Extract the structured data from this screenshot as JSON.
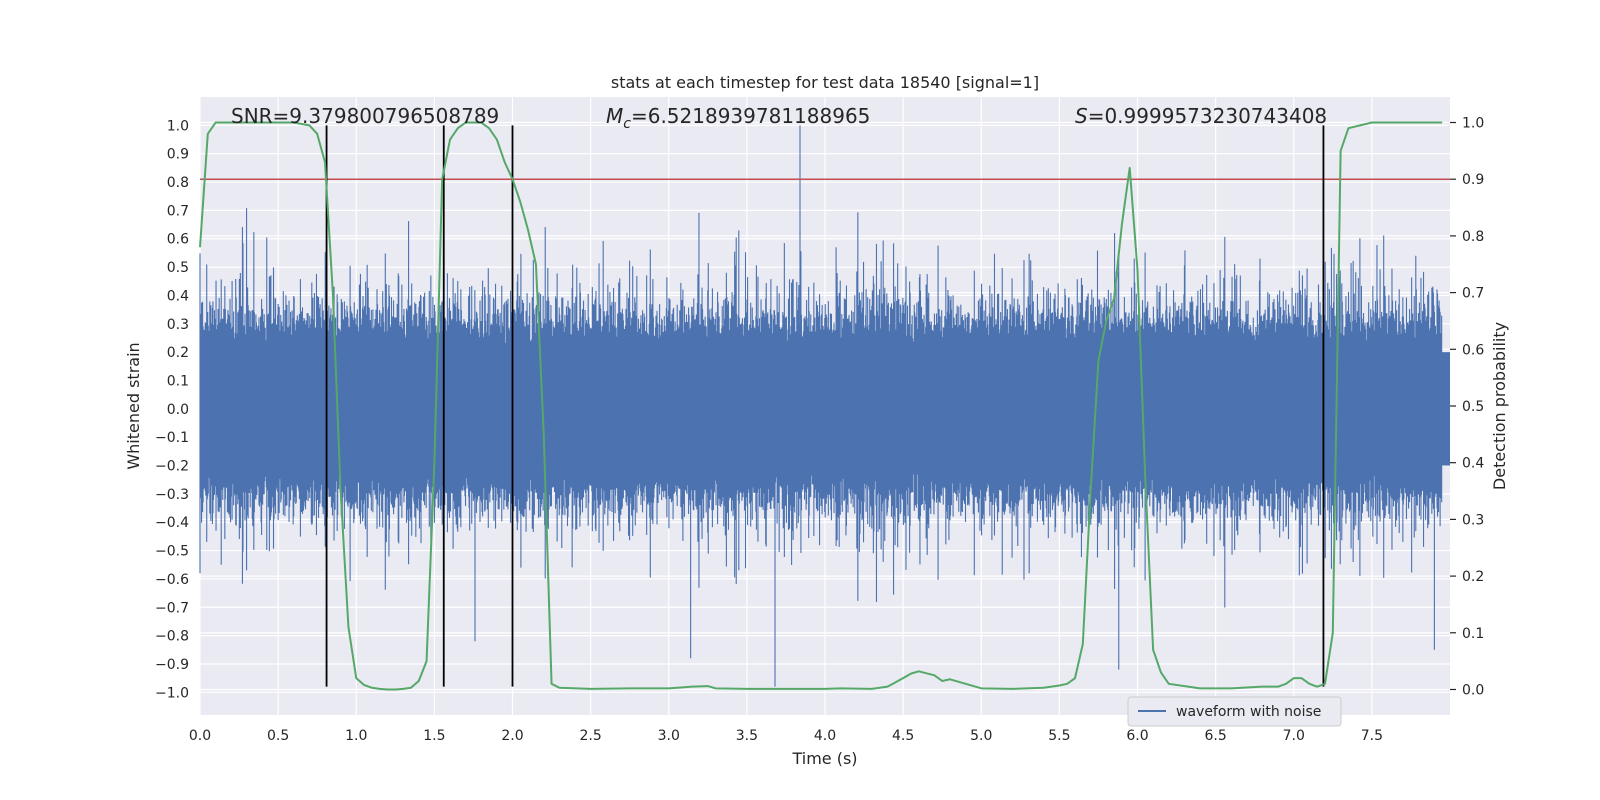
{
  "chart_data": {
    "type": "line",
    "title": "stats at each timestep for test data 18540 [signal=1]",
    "xlabel": "Time (s)",
    "ylabel_left": "Whitened strain",
    "ylabel_right": "Detection probability",
    "xlim": [
      0.0,
      8.0
    ],
    "ylim_left": [
      -1.08,
      1.1
    ],
    "ylim_right": [
      -0.045,
      1.045
    ],
    "x_ticks": [
      0.0,
      0.5,
      1.0,
      1.5,
      2.0,
      2.5,
      3.0,
      3.5,
      4.0,
      4.5,
      5.0,
      5.5,
      6.0,
      6.5,
      7.0,
      7.5
    ],
    "x_tick_labels": [
      "0.0",
      "0.5",
      "1.0",
      "1.5",
      "2.0",
      "2.5",
      "3.0",
      "3.5",
      "4.0",
      "4.5",
      "5.0",
      "5.5",
      "6.0",
      "6.5",
      "7.0",
      "7.5"
    ],
    "y_left_ticks": [
      -1.0,
      -0.9,
      -0.8,
      -0.7,
      -0.6,
      -0.5,
      -0.4,
      -0.3,
      -0.2,
      -0.1,
      0.0,
      0.1,
      0.2,
      0.3,
      0.4,
      0.5,
      0.6,
      0.7,
      0.8,
      0.9,
      1.0
    ],
    "y_left_tick_labels": [
      "−1.0",
      "−0.9",
      "−0.8",
      "−0.7",
      "−0.6",
      "−0.5",
      "−0.4",
      "−0.3",
      "−0.2",
      "−0.1",
      "0.0",
      "0.1",
      "0.2",
      "0.3",
      "0.4",
      "0.5",
      "0.6",
      "0.7",
      "0.8",
      "0.9",
      "1.0"
    ],
    "y_right_ticks": [
      0.0,
      0.1,
      0.2,
      0.3,
      0.4,
      0.5,
      0.6,
      0.7,
      0.8,
      0.9,
      1.0
    ],
    "y_right_tick_labels": [
      "0.0",
      "0.1",
      "0.2",
      "0.3",
      "0.4",
      "0.5",
      "0.6",
      "0.7",
      "0.8",
      "0.9",
      "1.0"
    ],
    "annotations": {
      "snr": "SNR=9.379800796508789",
      "mc_symbol": "M",
      "mc_sub": "c",
      "mc_value": "=6.5218939781188965",
      "s_symbol": "S",
      "s_value": "=0.9999573230743408"
    },
    "threshold": {
      "value": 0.9,
      "axis": "right",
      "color": "#c44e52"
    },
    "vertical_lines": [
      0.81,
      1.56,
      2.0,
      7.19
    ],
    "vertical_line_range_left": [
      -0.98,
      1.0
    ],
    "series": [
      {
        "name": "waveform with noise",
        "axis": "left",
        "color": "#4c72b0",
        "kind": "noise-strain",
        "spikes": [
          [
            3.84,
            1.0
          ],
          [
            3.68,
            -0.98
          ],
          [
            5.88,
            -0.92
          ],
          [
            7.9,
            -0.85
          ],
          [
            1.76,
            -0.82
          ],
          [
            3.14,
            -0.88
          ]
        ]
      },
      {
        "name": "detection probability",
        "axis": "right",
        "color": "#55a868",
        "x": [
          0.0,
          0.05,
          0.1,
          0.2,
          0.3,
          0.4,
          0.5,
          0.6,
          0.7,
          0.75,
          0.8,
          0.85,
          0.9,
          0.95,
          1.0,
          1.05,
          1.1,
          1.15,
          1.2,
          1.25,
          1.3,
          1.35,
          1.4,
          1.45,
          1.5,
          1.55,
          1.6,
          1.65,
          1.7,
          1.75,
          1.8,
          1.85,
          1.9,
          1.95,
          2.0,
          2.05,
          2.1,
          2.15,
          2.2,
          2.25,
          2.3,
          2.5,
          2.75,
          3.0,
          3.1,
          3.15,
          3.25,
          3.3,
          3.5,
          3.75,
          4.0,
          4.1,
          4.3,
          4.4,
          4.5,
          4.55,
          4.6,
          4.7,
          4.75,
          4.8,
          4.9,
          5.0,
          5.2,
          5.4,
          5.5,
          5.55,
          5.6,
          5.65,
          5.7,
          5.75,
          5.8,
          5.85,
          5.9,
          5.95,
          6.0,
          6.05,
          6.1,
          6.15,
          6.2,
          6.4,
          6.6,
          6.8,
          6.9,
          6.95,
          7.0,
          7.05,
          7.1,
          7.15,
          7.2,
          7.25,
          7.3,
          7.35,
          7.5,
          7.75,
          7.95
        ],
        "y": [
          0.78,
          0.98,
          1.0,
          1.0,
          1.0,
          1.0,
          1.0,
          1.0,
          0.995,
          0.98,
          0.93,
          0.7,
          0.35,
          0.11,
          0.02,
          0.008,
          0.003,
          0.001,
          0.0,
          0.0,
          0.001,
          0.003,
          0.015,
          0.05,
          0.4,
          0.9,
          0.97,
          0.99,
          1.0,
          1.0,
          1.0,
          0.99,
          0.97,
          0.93,
          0.9,
          0.86,
          0.81,
          0.75,
          0.45,
          0.01,
          0.003,
          0.001,
          0.002,
          0.002,
          0.004,
          0.005,
          0.006,
          0.002,
          0.001,
          0.001,
          0.001,
          0.002,
          0.001,
          0.005,
          0.02,
          0.028,
          0.032,
          0.025,
          0.015,
          0.018,
          0.01,
          0.002,
          0.001,
          0.003,
          0.007,
          0.01,
          0.02,
          0.08,
          0.35,
          0.58,
          0.65,
          0.69,
          0.82,
          0.92,
          0.74,
          0.37,
          0.07,
          0.03,
          0.01,
          0.002,
          0.002,
          0.005,
          0.005,
          0.01,
          0.02,
          0.02,
          0.01,
          0.005,
          0.01,
          0.1,
          0.95,
          0.99,
          1.0,
          1.0,
          1.0
        ]
      }
    ],
    "legend": {
      "location": "lower-right",
      "label": "waveform with noise"
    },
    "grid": true,
    "style": {
      "background": "#eaeaf2",
      "grid_color": "#ffffff",
      "vline_color": "#000000"
    }
  }
}
